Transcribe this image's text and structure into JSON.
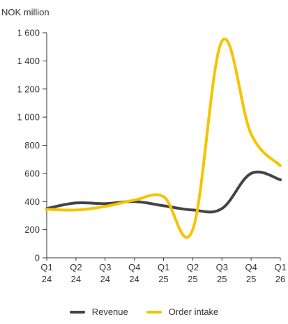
{
  "chart_data": {
    "type": "line",
    "unit_label": "NOK million",
    "categories": [
      "Q1 24",
      "Q2 24",
      "Q3 24",
      "Q4 24",
      "Q1 25",
      "Q2 25",
      "Q3 25",
      "Q4 25",
      "Q1 26"
    ],
    "category_lines": [
      [
        "Q1",
        "24"
      ],
      [
        "Q2",
        "24"
      ],
      [
        "Q3",
        "24"
      ],
      [
        "Q4",
        "24"
      ],
      [
        "Q1",
        "25"
      ],
      [
        "Q2",
        "25"
      ],
      [
        "Q3",
        "25"
      ],
      [
        "Q4",
        "25"
      ],
      [
        "Q1",
        "26"
      ]
    ],
    "series": [
      {
        "name": "Revenue",
        "color": "#444444",
        "values": [
          350,
          390,
          385,
          400,
          370,
          340,
          350,
          600,
          555
        ]
      },
      {
        "name": "Order intake",
        "color": "#F5C400",
        "values": [
          345,
          340,
          365,
          410,
          435,
          200,
          1540,
          880,
          655
        ]
      }
    ],
    "ylim": [
      0,
      1600
    ],
    "yticks": [
      0,
      200,
      400,
      600,
      800,
      1000,
      1200,
      1400,
      1600
    ],
    "ytick_labels": [
      "0",
      "200",
      "400",
      "600",
      "800",
      "1 000",
      "1 200",
      "1 400",
      "1 600"
    ],
    "grid": false,
    "legend_position": "bottom-center"
  }
}
